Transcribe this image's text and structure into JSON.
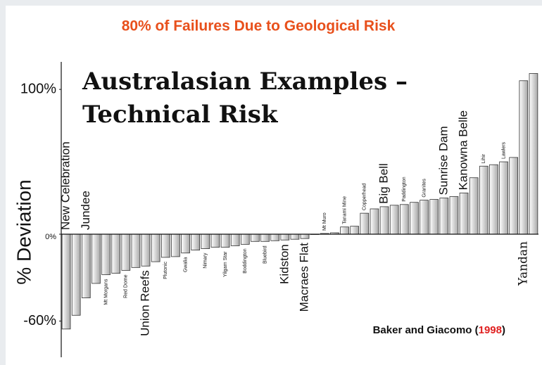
{
  "heading": "80% of Failures Due to Geological Risk",
  "chart_data": {
    "type": "bar",
    "title": [
      "Australasian Examples –",
      "Technical Risk"
    ],
    "ylabel": "% Deviation",
    "source": [
      "Baker and Giacomo (",
      "1998",
      ")"
    ],
    "categories": [
      "New Celebration",
      null,
      "Jundee",
      null,
      "Mt Morgans",
      null,
      "Red Dome",
      null,
      "Union Reefs",
      null,
      "Plutonic",
      null,
      "Gwalia",
      null,
      "Nimary",
      null,
      "Yilgarn Star",
      null,
      "Boddington",
      null,
      "Bluebird",
      null,
      "Kidston",
      null,
      "Macraes Flat",
      null,
      "Mt Muro",
      null,
      "Tanami Mine",
      null,
      "Copperhead",
      null,
      "Big Bell",
      null,
      "Paddington",
      null,
      "Granites",
      null,
      "Sunrise Dam",
      null,
      "Kanowna Belle",
      null,
      "Lihir",
      null,
      "Lawlers",
      null,
      "Yandan",
      null
    ],
    "values": [
      -65.5,
      -56,
      -44,
      -34,
      -28,
      -27,
      -25,
      -23,
      -22,
      -19,
      -16,
      -15.5,
      -13,
      -11,
      -10,
      -9,
      -9,
      -8,
      -7,
      -5,
      -5,
      -4.5,
      -4,
      -3.5,
      -3,
      0,
      0.5,
      1,
      5,
      5.5,
      14.5,
      17.5,
      19,
      20,
      20.5,
      22,
      23.5,
      24,
      25,
      26,
      28.5,
      39,
      47,
      48,
      50,
      53,
      106,
      111
    ],
    "ylim": [
      -85,
      119
    ],
    "yticks": [
      {
        "value": 100,
        "label": "100%"
      },
      {
        "value": 0,
        "label": "0%"
      },
      {
        "value": -60,
        "label": "-60%"
      }
    ],
    "grid": false
  }
}
